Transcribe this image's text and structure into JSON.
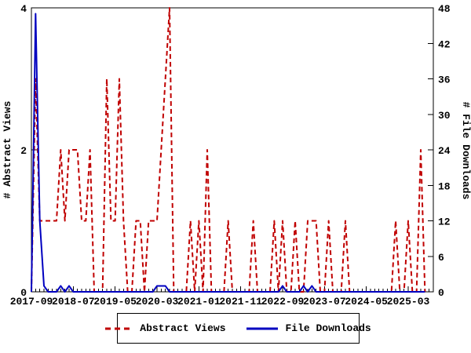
{
  "colors": {
    "abstract_views": "#c00000",
    "file_downloads": "#0000c0",
    "axis": "#000000",
    "background": "#ffffff"
  },
  "legend": {
    "abstract_views_label": "Abstract Views",
    "file_downloads_label": "File Downloads"
  },
  "chart_data": {
    "type": "line",
    "title": "",
    "xlabel": "",
    "y_left_label": "# Abstract Views",
    "y_right_label": "# File Downloads",
    "y_left_range": [
      0,
      4
    ],
    "y_left_ticks": [
      0,
      2,
      4
    ],
    "y_right_range": [
      0,
      48
    ],
    "y_right_ticks": [
      0,
      6,
      12,
      18,
      24,
      30,
      36,
      42,
      48
    ],
    "grid": "off",
    "legend_position": "bottom-center",
    "x_major_tick_labels": [
      "2017-09",
      "2018-07",
      "2019-05",
      "2020-03",
      "2021-01",
      "2021-11",
      "2022-09",
      "2023-07",
      "2024-05",
      "2025-03"
    ],
    "x_major_tick_month_index": [
      0,
      10,
      20,
      30,
      40,
      50,
      60,
      70,
      80,
      90
    ],
    "months": [
      "2017-09",
      "2017-10",
      "2017-11",
      "2017-12",
      "2018-01",
      "2018-02",
      "2018-03",
      "2018-04",
      "2018-05",
      "2018-06",
      "2018-07",
      "2018-08",
      "2018-09",
      "2018-10",
      "2018-11",
      "2018-12",
      "2019-01",
      "2019-02",
      "2019-03",
      "2019-04",
      "2019-05",
      "2019-06",
      "2019-07",
      "2019-08",
      "2019-09",
      "2019-10",
      "2019-11",
      "2019-12",
      "2020-01",
      "2020-02",
      "2020-03",
      "2020-04",
      "2020-05",
      "2020-06",
      "2020-07",
      "2020-08",
      "2020-09",
      "2020-10",
      "2020-11",
      "2020-12",
      "2021-01",
      "2021-02",
      "2021-03",
      "2021-04",
      "2021-05",
      "2021-06",
      "2021-07",
      "2021-08",
      "2021-09",
      "2021-10",
      "2021-11",
      "2021-12",
      "2022-01",
      "2022-02",
      "2022-03",
      "2022-04",
      "2022-05",
      "2022-06",
      "2022-07",
      "2022-08",
      "2022-09",
      "2022-10",
      "2022-11",
      "2022-12",
      "2023-01",
      "2023-02",
      "2023-03",
      "2023-04",
      "2023-05",
      "2023-06",
      "2023-07",
      "2023-08",
      "2023-09",
      "2023-10",
      "2023-11",
      "2023-12",
      "2024-01",
      "2024-02",
      "2024-03",
      "2024-04",
      "2024-05",
      "2024-06",
      "2024-07",
      "2024-08",
      "2024-09",
      "2024-10",
      "2024-11",
      "2024-12",
      "2025-01",
      "2025-02",
      "2025-03",
      "2025-04",
      "2025-05",
      "2025-06",
      "2025-07"
    ],
    "series": [
      {
        "name": "Abstract Views",
        "axis": "left",
        "color": "#c00000",
        "style": "dashed",
        "values": [
          0,
          3,
          1,
          1,
          1,
          1,
          1,
          2,
          1,
          2,
          2,
          2,
          1,
          1,
          2,
          0,
          0,
          0,
          3,
          1,
          1,
          3,
          1,
          0,
          0,
          1,
          1,
          0,
          1,
          1,
          1,
          2,
          3,
          4,
          0,
          0,
          0,
          0,
          1,
          0,
          1,
          0,
          2,
          0,
          0,
          0,
          0,
          1,
          0,
          0,
          0,
          0,
          0,
          1,
          0,
          0,
          0,
          0,
          1,
          0,
          1,
          0,
          0,
          1,
          0,
          0,
          1,
          1,
          1,
          0,
          0,
          1,
          0,
          0,
          0,
          1,
          0,
          0,
          0,
          0,
          0,
          0,
          0,
          0,
          0,
          0,
          0,
          1,
          0,
          0,
          1,
          0,
          0,
          2,
          0
        ]
      },
      {
        "name": "File Downloads",
        "axis": "right",
        "color": "#0000c0",
        "style": "solid",
        "values": [
          0,
          47,
          12,
          1,
          0,
          0,
          0,
          1,
          0,
          1,
          0,
          0,
          0,
          0,
          0,
          0,
          0,
          0,
          0,
          0,
          0,
          0,
          0,
          0,
          0,
          0,
          0,
          0,
          0,
          0,
          1,
          1,
          1,
          0,
          0,
          0,
          0,
          0,
          0,
          0,
          0,
          0,
          0,
          0,
          0,
          0,
          0,
          0,
          0,
          0,
          0,
          0,
          0,
          0,
          0,
          0,
          0,
          0,
          0,
          0,
          1,
          0,
          0,
          0,
          0,
          1,
          0,
          1,
          0,
          0,
          0,
          0,
          0,
          0,
          0,
          0,
          0,
          0,
          0,
          0,
          0,
          0,
          0,
          0,
          0,
          0,
          0,
          0,
          0,
          0,
          0,
          0,
          0,
          0,
          0
        ]
      }
    ]
  }
}
